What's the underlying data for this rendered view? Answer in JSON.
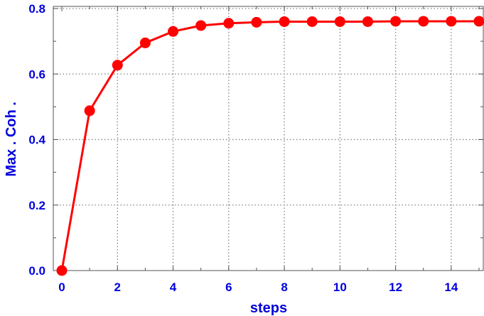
{
  "chart_data": {
    "type": "line",
    "title": "",
    "xlabel": "steps",
    "ylabel": "Max . Coh .",
    "xlim": [
      0,
      15
    ],
    "ylim": [
      0,
      0.8
    ],
    "x_ticks": [
      "0",
      "2",
      "4",
      "6",
      "8",
      "10",
      "12",
      "14"
    ],
    "y_ticks": [
      "0.0",
      "0.2",
      "0.4",
      "0.6",
      "0.8"
    ],
    "grid": true,
    "colors": {
      "series": "#ff0000",
      "labels": "#0000dd",
      "grid": "#808080"
    },
    "series": [
      {
        "x": [
          0,
          1,
          2,
          3,
          4,
          5,
          6,
          7,
          8,
          9,
          10,
          11,
          12,
          13,
          14,
          15
        ],
        "y": [
          0.0,
          0.488,
          0.627,
          0.695,
          0.73,
          0.748,
          0.755,
          0.758,
          0.76,
          0.76,
          0.76,
          0.76,
          0.761,
          0.761,
          0.761,
          0.761
        ]
      }
    ]
  }
}
